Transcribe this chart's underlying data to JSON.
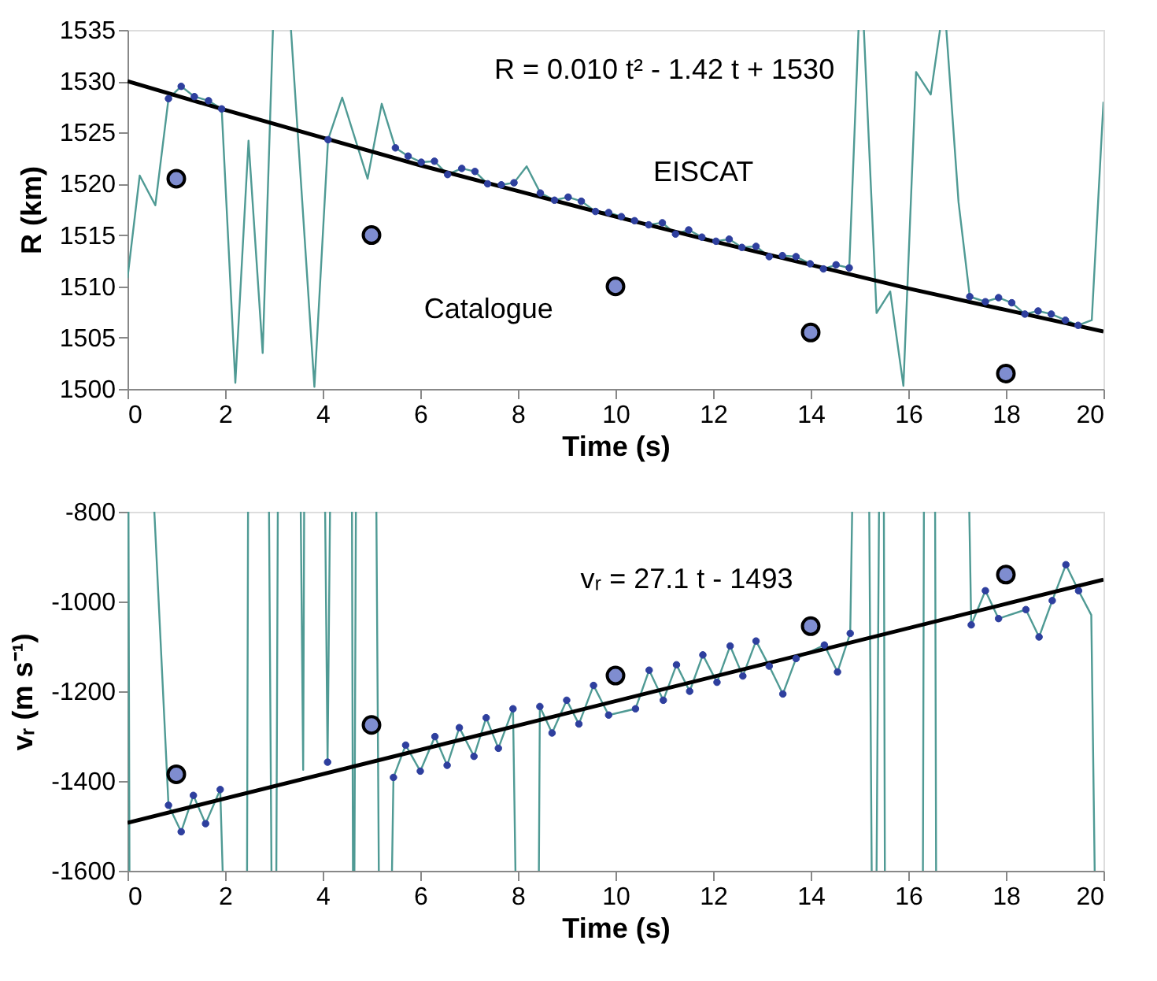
{
  "chart_data": [
    {
      "type": "line",
      "xlabel": "Time (s)",
      "ylabel": "R (km)",
      "xlim": [
        0,
        20
      ],
      "ylim": [
        1500,
        1535
      ],
      "xticks": [
        0,
        2,
        4,
        6,
        8,
        10,
        12,
        14,
        16,
        18,
        20
      ],
      "yticks": [
        1500,
        1505,
        1510,
        1515,
        1520,
        1525,
        1530,
        1535
      ],
      "grid": false,
      "annotations": [
        "R = 0.010 t² - 1.42 t + 1530",
        "EISCAT",
        "Catalogue"
      ],
      "series": [
        {
          "color": "#4f9a94",
          "x": [
            0,
            0.25,
            0.57,
            0.84,
            1.1,
            1.37,
            1.66,
            1.93,
            2.21,
            2.48,
            2.77,
            2.98,
            3.16,
            3.35,
            3.83,
            4.11,
            4.4,
            4.92,
            5.21,
            5.49,
            5.75,
            6.02,
            6.29,
            6.56,
            6.85,
            7.12,
            7.38,
            7.66,
            7.92,
            8.18,
            8.46,
            8.75,
            9.03,
            9.3,
            9.59,
            9.86,
            10.12,
            10.39,
            10.68,
            10.96,
            11.23,
            11.5,
            11.77,
            12.06,
            12.33,
            12.59,
            12.88,
            13.15,
            13.42,
            13.7,
            13.99,
            14.26,
            14.52,
            14.79,
            14.98,
            15.04,
            15.09,
            15.35,
            15.63,
            15.9,
            16.16,
            16.46,
            16.65,
            16.72,
            16.78,
            17.03,
            17.26,
            17.58,
            17.85,
            18.12,
            18.39,
            18.66,
            18.93,
            19.22,
            19.48,
            19.76,
            20
          ],
          "values": [
            1510.8,
            1520.8,
            1517.9,
            1528.3,
            1529.5,
            1528.5,
            1528.1,
            1527.3,
            1500.6,
            1524.2,
            1503.5,
            1535,
            null,
            1535,
            1500.2,
            1524.3,
            1528.4,
            1520.5,
            1527.8,
            1523.5,
            1522.7,
            1522.1,
            1522.2,
            1520.9,
            1521.5,
            1521.2,
            1520,
            1519.9,
            1520.1,
            1521.7,
            1519.1,
            1518.4,
            1518.7,
            1518.3,
            1517.3,
            1517.2,
            1516.8,
            1516.4,
            1516,
            1516.2,
            1515.1,
            1515.5,
            1514.8,
            1514.4,
            1514.6,
            1513.8,
            1513.9,
            1512.9,
            1513,
            1512.9,
            1512.2,
            1511.7,
            1512.1,
            1511.8,
            1535,
            null,
            1535,
            1507.4,
            1509.5,
            1500.3,
            1530.9,
            1528.7,
            1535,
            null,
            1535,
            1518.2,
            1509,
            1508.5,
            1508.9,
            1508.4,
            1507.3,
            1507.6,
            1507.3,
            1506.7,
            1506.2,
            1506.7,
            1528
          ]
        },
        {
          "type": "scatter",
          "color": "#2e3f9e",
          "x": [
            0.84,
            1.1,
            1.37,
            1.66,
            1.93,
            4.11,
            5.49,
            5.75,
            6.02,
            6.29,
            6.56,
            6.85,
            7.12,
            7.38,
            7.66,
            7.92,
            8.46,
            8.75,
            9.03,
            9.3,
            9.59,
            9.86,
            10.12,
            10.39,
            10.68,
            10.96,
            11.23,
            11.5,
            11.77,
            12.06,
            12.33,
            12.59,
            12.88,
            13.15,
            13.42,
            13.7,
            13.99,
            14.26,
            14.52,
            14.79,
            17.26,
            17.58,
            17.85,
            18.12,
            18.39,
            18.66,
            18.93,
            19.22,
            19.48
          ],
          "values": [
            1528.3,
            1529.5,
            1528.5,
            1528.1,
            1527.3,
            1524.3,
            1523.5,
            1522.7,
            1522.1,
            1522.2,
            1520.9,
            1521.5,
            1521.2,
            1520,
            1519.9,
            1520.1,
            1519.1,
            1518.4,
            1518.7,
            1518.3,
            1517.3,
            1517.2,
            1516.8,
            1516.4,
            1516,
            1516.2,
            1515.1,
            1515.5,
            1514.8,
            1514.4,
            1514.6,
            1513.8,
            1513.9,
            1512.9,
            1513,
            1512.9,
            1512.2,
            1511.7,
            1512.1,
            1511.8,
            1509,
            1508.5,
            1508.9,
            1508.4,
            1507.3,
            1507.6,
            1507.3,
            1506.7,
            1506.2
          ]
        },
        {
          "color": "#000000",
          "x": [
            0,
            2,
            4,
            6,
            8,
            10,
            12,
            14,
            16,
            18,
            20
          ],
          "values": [
            1530,
            1527.2,
            1524.5,
            1521.8,
            1519.3,
            1516.8,
            1514.4,
            1512.1,
            1509.8,
            1507.7,
            1505.6
          ]
        },
        {
          "type": "scatter",
          "color": "#7f8dd0",
          "x": [
            1,
            5,
            10,
            14,
            18
          ],
          "values": [
            1520.5,
            1515,
            1510,
            1505.5,
            1501.5
          ]
        }
      ]
    },
    {
      "type": "line",
      "xlabel": "Time (s)",
      "ylabel": "vᵣ (m s⁻¹)",
      "xlim": [
        0,
        20
      ],
      "ylim": [
        -1600,
        -800
      ],
      "xticks": [
        0,
        2,
        4,
        6,
        8,
        10,
        12,
        14,
        16,
        18,
        20
      ],
      "yticks": [
        -1600,
        -1400,
        -1200,
        -1000,
        -800
      ],
      "grid": false,
      "annotations": [
        "vᵣ = 27.1 t - 1493"
      ],
      "series": [
        {
          "color": "#4f9a94",
          "x": [
            0.02,
            0.04,
            0.3,
            0.55,
            0.84,
            1.1,
            1.35,
            1.6,
            1.9,
            1.95,
            2.2,
            2.45,
            2.47,
            2.7,
            2.9,
            2.95,
            3.0,
            3.05,
            3.08,
            3.3,
            3.55,
            3.6,
            3.62,
            3.8,
            4.05,
            4.1,
            4.15,
            4.4,
            4.6,
            4.62,
            4.64,
            4.65,
            4.68,
            4.9,
            5.1,
            5.15,
            5.3,
            5.42,
            5.45,
            5.7,
            6.0,
            6.3,
            6.55,
            6.8,
            7.1,
            7.35,
            7.6,
            7.9,
            7.95,
            8.2,
            8.43,
            8.45,
            8.7,
            9.0,
            9.25,
            9.55,
            9.86,
            10.41,
            10.69,
            10.98,
            11.25,
            11.52,
            11.79,
            12.08,
            12.35,
            12.61,
            12.88,
            13.15,
            13.43,
            13.7,
            14.28,
            14.55,
            14.81,
            14.85,
            15.0,
            15.2,
            15.25,
            15.3,
            15.35,
            15.4,
            15.45,
            15.5,
            15.52,
            15.9,
            16.3,
            16.32,
            16.45,
            16.55,
            16.57,
            16.9,
            17.25,
            17.29,
            17.58,
            17.85,
            18.41,
            18.68,
            18.95,
            19.23,
            19.49,
            19.75,
            19.82
          ],
          "values": [
            -800,
            -1600,
            null,
            -800,
            -1454,
            -1513,
            -1432,
            -1495,
            -1419,
            -1600,
            null,
            -1600,
            -800,
            null,
            -800,
            -1600,
            null,
            -1600,
            -800,
            null,
            -800,
            -1375,
            -800,
            null,
            -800,
            -1358,
            -800,
            null,
            -800,
            -1600,
            null,
            -1600,
            -800,
            null,
            -800,
            -1600,
            null,
            -1600,
            -1392,
            -1320,
            -1378,
            -1301,
            -1365,
            -1281,
            -1345,
            -1259,
            -1327,
            -1239,
            -1600,
            null,
            -1600,
            -1234,
            -1293,
            -1220,
            -1273,
            -1187,
            -1253,
            -1239,
            -1153,
            -1220,
            -1141,
            -1200,
            -1119,
            -1180,
            -1099,
            -1166,
            -1088,
            -1144,
            -1206,
            -1127,
            -1097,
            -1157,
            -1071,
            -800,
            null,
            -800,
            -1600,
            null,
            -1600,
            -800,
            null,
            -800,
            -1600,
            null,
            -1600,
            -800,
            null,
            -800,
            -1600,
            null,
            -800,
            -1052,
            -976,
            -1038,
            -1018,
            -1079,
            -998,
            -918,
            -976,
            -1030,
            -1600
          ]
        },
        {
          "type": "scatter",
          "color": "#2e3f9e",
          "x": [
            0.84,
            1.1,
            1.35,
            1.6,
            1.9,
            4.1,
            5.45,
            5.7,
            6.0,
            6.3,
            6.55,
            6.8,
            7.1,
            7.35,
            7.6,
            7.9,
            8.45,
            8.7,
            9.0,
            9.25,
            9.55,
            9.86,
            10.41,
            10.69,
            10.98,
            11.25,
            11.52,
            11.79,
            12.08,
            12.35,
            12.61,
            12.88,
            13.15,
            13.43,
            13.7,
            14.28,
            14.55,
            14.81,
            17.29,
            17.58,
            17.85,
            18.41,
            18.68,
            18.95,
            19.23,
            19.49
          ],
          "values": [
            -1454,
            -1513,
            -1432,
            -1495,
            -1419,
            -1358,
            -1392,
            -1320,
            -1378,
            -1301,
            -1365,
            -1281,
            -1345,
            -1259,
            -1327,
            -1239,
            -1234,
            -1293,
            -1220,
            -1273,
            -1187,
            -1253,
            -1239,
            -1153,
            -1220,
            -1141,
            -1200,
            -1119,
            -1180,
            -1099,
            -1166,
            -1088,
            -1144,
            -1206,
            -1127,
            -1097,
            -1157,
            -1071,
            -1052,
            -976,
            -1038,
            -1018,
            -1079,
            -998,
            -918,
            -976
          ]
        },
        {
          "color": "#000000",
          "x": [
            0,
            20
          ],
          "values": [
            -1493,
            -951
          ]
        },
        {
          "type": "scatter",
          "color": "#7f8dd0",
          "x": [
            1,
            5,
            10,
            14,
            18
          ],
          "values": [
            -1385,
            -1275,
            -1165,
            -1055,
            -940
          ]
        }
      ]
    }
  ]
}
